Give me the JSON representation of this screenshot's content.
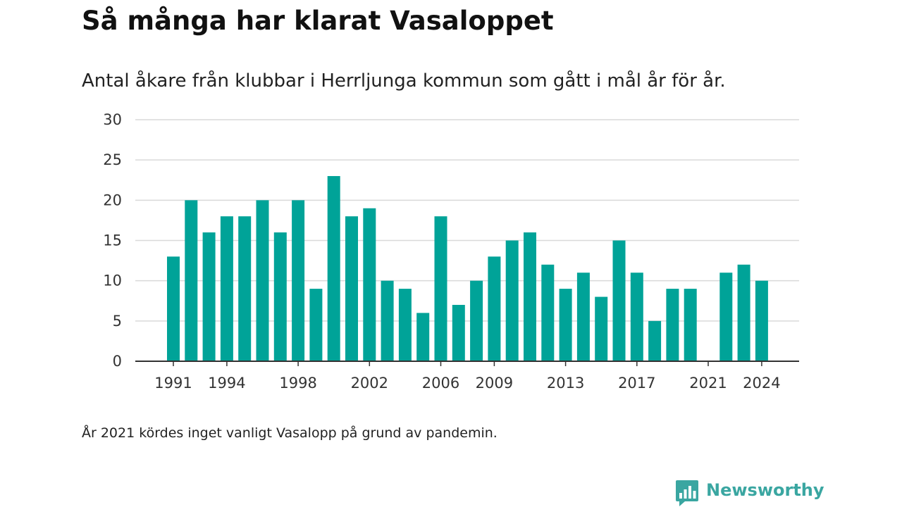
{
  "title": "Så många har klarat Vasaloppet",
  "subtitle": "Antal åkare från klubbar i Herrljunga kommun som gått i mål år för år.",
  "footnote": "År 2021 kördes inget vanligt Vasalopp på grund av pandemin.",
  "brand": {
    "name": "Newsworthy",
    "color": "#3aa6a1",
    "icon": "newsworthy-logo-icon"
  },
  "colors": {
    "bar": "#00a398",
    "grid": "#d9d9d9",
    "axis": "#333333"
  },
  "chart_data": {
    "type": "bar",
    "title": "Så många har klarat Vasaloppet",
    "subtitle": "Antal åkare från klubbar i Herrljunga kommun som gått i mål år för år.",
    "xlabel": "",
    "ylabel": "",
    "ylim": [
      0,
      30
    ],
    "yticks": [
      "0",
      "5",
      "10",
      "15",
      "20",
      "25",
      "30"
    ],
    "xtick_labels": [
      "1991",
      "1994",
      "1998",
      "2002",
      "2006",
      "2009",
      "2013",
      "2017",
      "2021",
      "2024"
    ],
    "categories": [
      1991,
      1992,
      1993,
      1994,
      1995,
      1996,
      1997,
      1998,
      1999,
      2000,
      2001,
      2002,
      2003,
      2004,
      2005,
      2006,
      2007,
      2008,
      2009,
      2010,
      2011,
      2012,
      2013,
      2014,
      2015,
      2016,
      2017,
      2018,
      2019,
      2020,
      2021,
      2022,
      2023,
      2024
    ],
    "values": [
      13,
      20,
      16,
      18,
      18,
      20,
      16,
      20,
      9,
      23,
      18,
      19,
      10,
      9,
      6,
      18,
      7,
      10,
      13,
      15,
      16,
      12,
      9,
      11,
      8,
      15,
      11,
      5,
      9,
      9,
      0,
      11,
      12,
      10
    ],
    "grid": true,
    "legend": "none"
  }
}
